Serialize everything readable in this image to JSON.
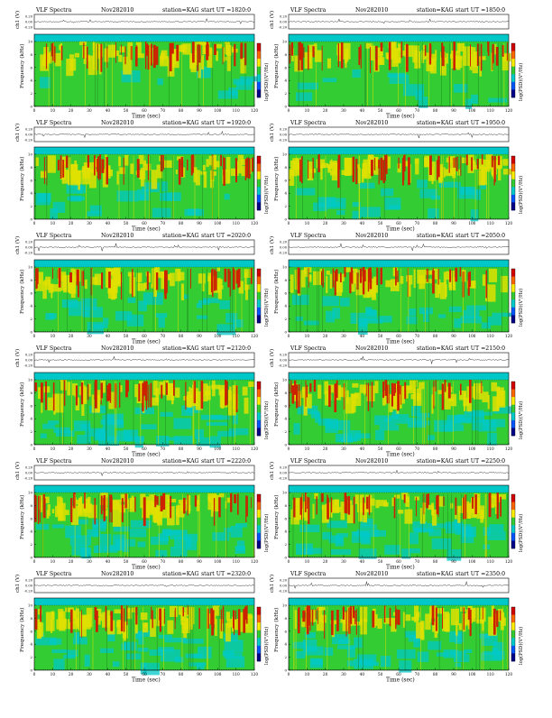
{
  "header": {
    "title": "VLF Spectra",
    "date": "Nov282010",
    "station": "station=KAG"
  },
  "axes": {
    "wave_label": "ch1 (V)",
    "freq_label": "Frequency (kHz)",
    "time_label": "Time (sec)",
    "colorbar_label": "log(PSD)(V²/Hz)",
    "wave_ticks": [
      "0.20",
      "0.00",
      "-0.20"
    ],
    "freq_ticks": [
      "0",
      "2",
      "4",
      "6",
      "8",
      "10"
    ],
    "time_ticks": [
      "0",
      "10",
      "20",
      "30",
      "40",
      "50",
      "60",
      "70",
      "80",
      "90",
      "100",
      "110",
      "120"
    ]
  },
  "colors": {
    "background": "#00c8c8",
    "cool": "#33cc33",
    "mid": "#e0e000",
    "hot": "#cc2200",
    "colorbar": [
      "#d40000",
      "#ff6600",
      "#ffee00",
      "#33cc33",
      "#00cccc",
      "#0055ff",
      "#000088"
    ]
  },
  "panels": [
    {
      "start": "start  UT =1820:0"
    },
    {
      "start": "start  UT =1850:0"
    },
    {
      "start": "start  UT =1920:0"
    },
    {
      "start": "start  UT =1950:0"
    },
    {
      "start": "start  UT =2020:0"
    },
    {
      "start": "start  UT =2050:0"
    },
    {
      "start": "start  UT =2120:0"
    },
    {
      "start": "start  UT =2150:0"
    },
    {
      "start": "start  UT =2220:0"
    },
    {
      "start": "start  UT =2250:0"
    },
    {
      "start": "start  UT =2320:0"
    },
    {
      "start": "start  UT =2350:0"
    }
  ],
  "chart_data": {
    "type": "heatmap",
    "description_of_axes": "Each panel: spectrogram of VLF signal, time 0–120 s vs frequency 0–10 kHz, color = log PSD",
    "xlabel": "Time (sec)",
    "ylabel": "Frequency (kHz)",
    "xlim": [
      0,
      120
    ],
    "ylim": [
      0,
      10
    ],
    "series": [
      {
        "start_ut": "1820:0"
      },
      {
        "start_ut": "1850:0"
      },
      {
        "start_ut": "1920:0"
      },
      {
        "start_ut": "1950:0"
      },
      {
        "start_ut": "2020:0"
      },
      {
        "start_ut": "2050:0"
      },
      {
        "start_ut": "2120:0"
      },
      {
        "start_ut": "2150:0"
      },
      {
        "start_ut": "2220:0"
      },
      {
        "start_ut": "2250:0"
      },
      {
        "start_ut": "2320:0"
      },
      {
        "start_ut": "2350:0"
      }
    ]
  }
}
